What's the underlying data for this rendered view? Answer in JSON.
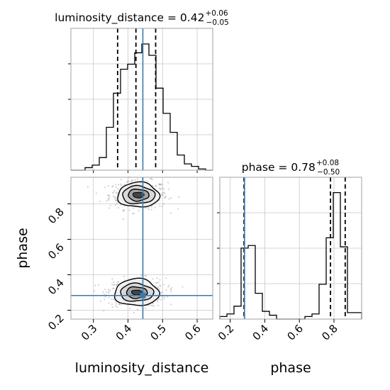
{
  "chart_data": {
    "type": "corner",
    "parameters": [
      "luminosity_distance",
      "phase"
    ],
    "colors": {
      "truth": "#3b78b0",
      "hist": "#000000",
      "quantile": "#000000",
      "grid": "#c8c8c8",
      "scatter": "#9e9e9e"
    },
    "truth": {
      "luminosity_distance": 0.443,
      "phase": 0.283
    },
    "panels": {
      "luminosity_distance_marginal": {
        "title": {
          "lhs": "luminosity_distance = 0.42",
          "sup": "+0.06",
          "sub": "−0.05"
        },
        "xlim": [
          0.235,
          0.645
        ],
        "quantiles": [
          0.37,
          0.423,
          0.48
        ],
        "bin_edges": [
          0.235,
          0.2555,
          0.276,
          0.2965,
          0.317,
          0.3375,
          0.358,
          0.3785,
          0.399,
          0.4195,
          0.44,
          0.4605,
          0.481,
          0.5015,
          0.522,
          0.5425,
          0.563,
          0.5835,
          0.604,
          0.6245,
          0.645
        ],
        "counts": [
          0,
          0,
          0.02,
          0.04,
          0.1,
          0.34,
          0.61,
          0.8,
          0.84,
          0.93,
          1.0,
          0.91,
          0.65,
          0.45,
          0.3,
          0.12,
          0.05,
          0.03,
          0.01,
          0
        ]
      },
      "phase_marginal": {
        "title": {
          "lhs": "phase = 0.78",
          "sup": "+0.08",
          "sub": "−0.50"
        },
        "xlim": [
          0.14,
          0.96
        ],
        "quantiles": [
          0.28,
          0.78,
          0.865
        ],
        "bin_edges": [
          0.14,
          0.181,
          0.222,
          0.263,
          0.304,
          0.345,
          0.386,
          0.427,
          0.468,
          0.509,
          0.55,
          0.591,
          0.632,
          0.673,
          0.714,
          0.755,
          0.796,
          0.837,
          0.878,
          0.919,
          0.96
        ],
        "counts": [
          0.02,
          0.04,
          0.1,
          0.55,
          0.57,
          0.2,
          0.06,
          0.03,
          0.0,
          0.0,
          0.0,
          0.0,
          0.02,
          0.04,
          0.27,
          0.63,
          0.98,
          0.56,
          0.05,
          0.05
        ]
      },
      "joint": {
        "xlim": [
          0.235,
          0.645
        ],
        "ylim": [
          0.15,
          0.95
        ],
        "modes": [
          {
            "luminosity_distance": 0.43,
            "phase": 0.85,
            "levels": [
              [
                0.06,
                0.07
              ],
              [
                0.047,
                0.05
              ],
              [
                0.03,
                0.033
              ],
              [
                0.016,
                0.016
              ]
            ]
          },
          {
            "luminosity_distance": 0.425,
            "phase": 0.3,
            "levels": [
              [
                0.064,
                0.076
              ],
              [
                0.048,
                0.05
              ],
              [
                0.03,
                0.032
              ],
              [
                0.015,
                0.014
              ]
            ]
          }
        ]
      }
    },
    "axes": {
      "luminosity_distance": {
        "label": "luminosity_distance",
        "ticks": [
          "0.3",
          "0.4",
          "0.5",
          "0.6"
        ],
        "tick_values": [
          0.3,
          0.4,
          0.5,
          0.6
        ]
      },
      "phase": {
        "label": "phase",
        "ticks_x": [
          "0.2",
          "0.4",
          "0.6",
          "0.8"
        ],
        "tick_values_x": [
          0.2,
          0.4,
          0.6,
          0.8
        ],
        "ticks_y": [
          "0.2",
          "0.4",
          "0.6",
          "0.8"
        ],
        "tick_values_y": [
          0.2,
          0.4,
          0.6,
          0.8
        ]
      }
    }
  }
}
